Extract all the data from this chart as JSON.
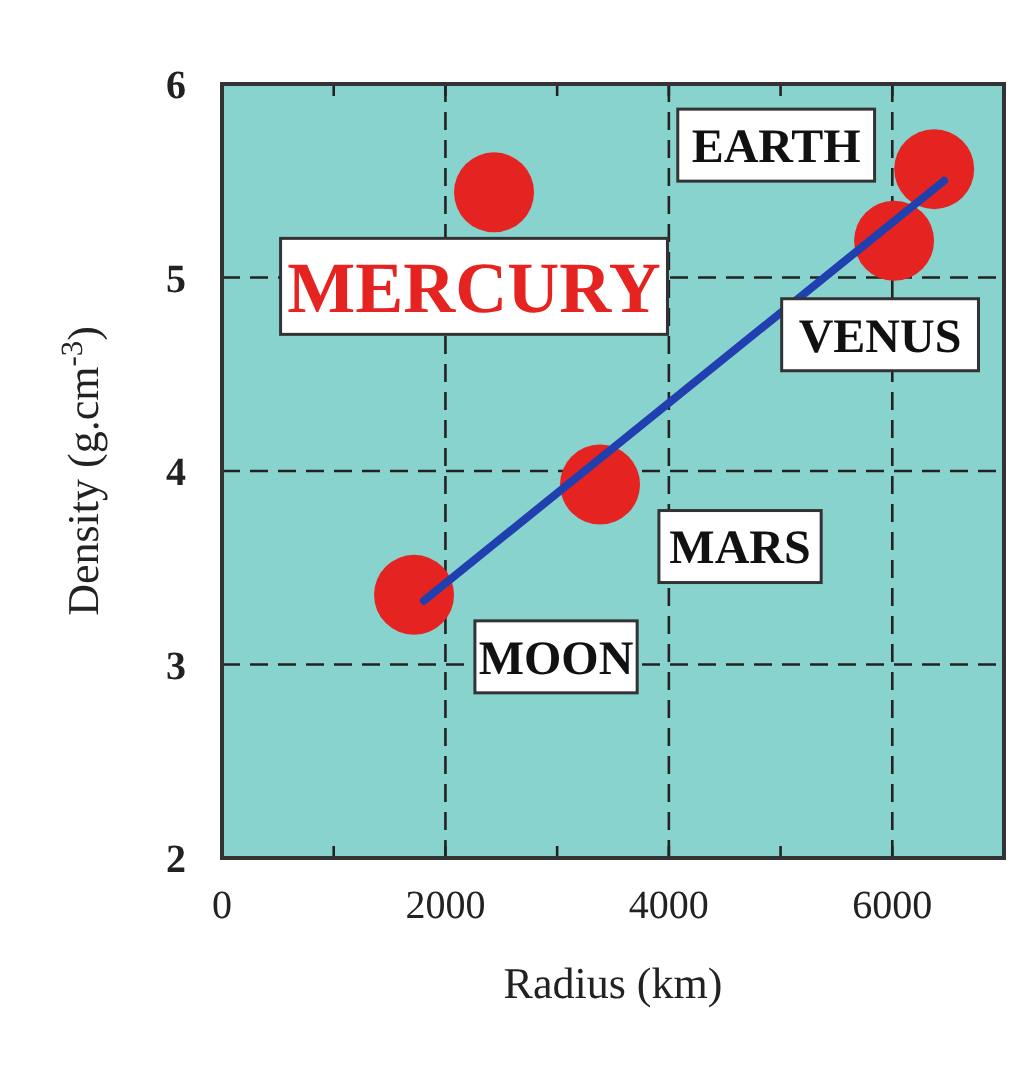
{
  "chart_data": {
    "type": "scatter",
    "xlabel": "Radius (km)",
    "ylabel": "Density (g.cm$^{-3}$)",
    "xlim": [
      0,
      7000
    ],
    "xticks": [
      0,
      {
        "value": 1000,
        "label": null
      },
      2000,
      {
        "value": 3000,
        "label": null
      },
      4000,
      {
        "value": 5000,
        "label": null
      },
      6000
    ],
    "ylim": [
      2,
      6
    ],
    "yticks": [
      2,
      3,
      4,
      5,
      6
    ],
    "grid": true,
    "series": [
      {
        "marker": "circle",
        "color": "#e52421",
        "x": [
          2435,
          6375,
          6016,
          3384,
          1719
        ],
        "values": [
          5.44,
          5.56,
          5.19,
          3.93,
          3.36
        ]
      },
      {
        "type": "line",
        "color": "#2040b0",
        "x": [
          1808,
          6464
        ],
        "values": [
          3.33,
          5.5
        ]
      }
    ],
    "annotations": [
      {
        "text": "MERCURY",
        "x": 2435,
        "y": 5.44
      },
      {
        "text": "EARTH",
        "x": 6375,
        "y": 5.56
      },
      {
        "text": "VENUS",
        "x": 6016,
        "y": 5.19
      },
      {
        "text": "MARS",
        "x": 3384,
        "y": 3.93
      },
      {
        "text": "MOON",
        "x": 1719,
        "y": 3.36
      }
    ]
  }
}
